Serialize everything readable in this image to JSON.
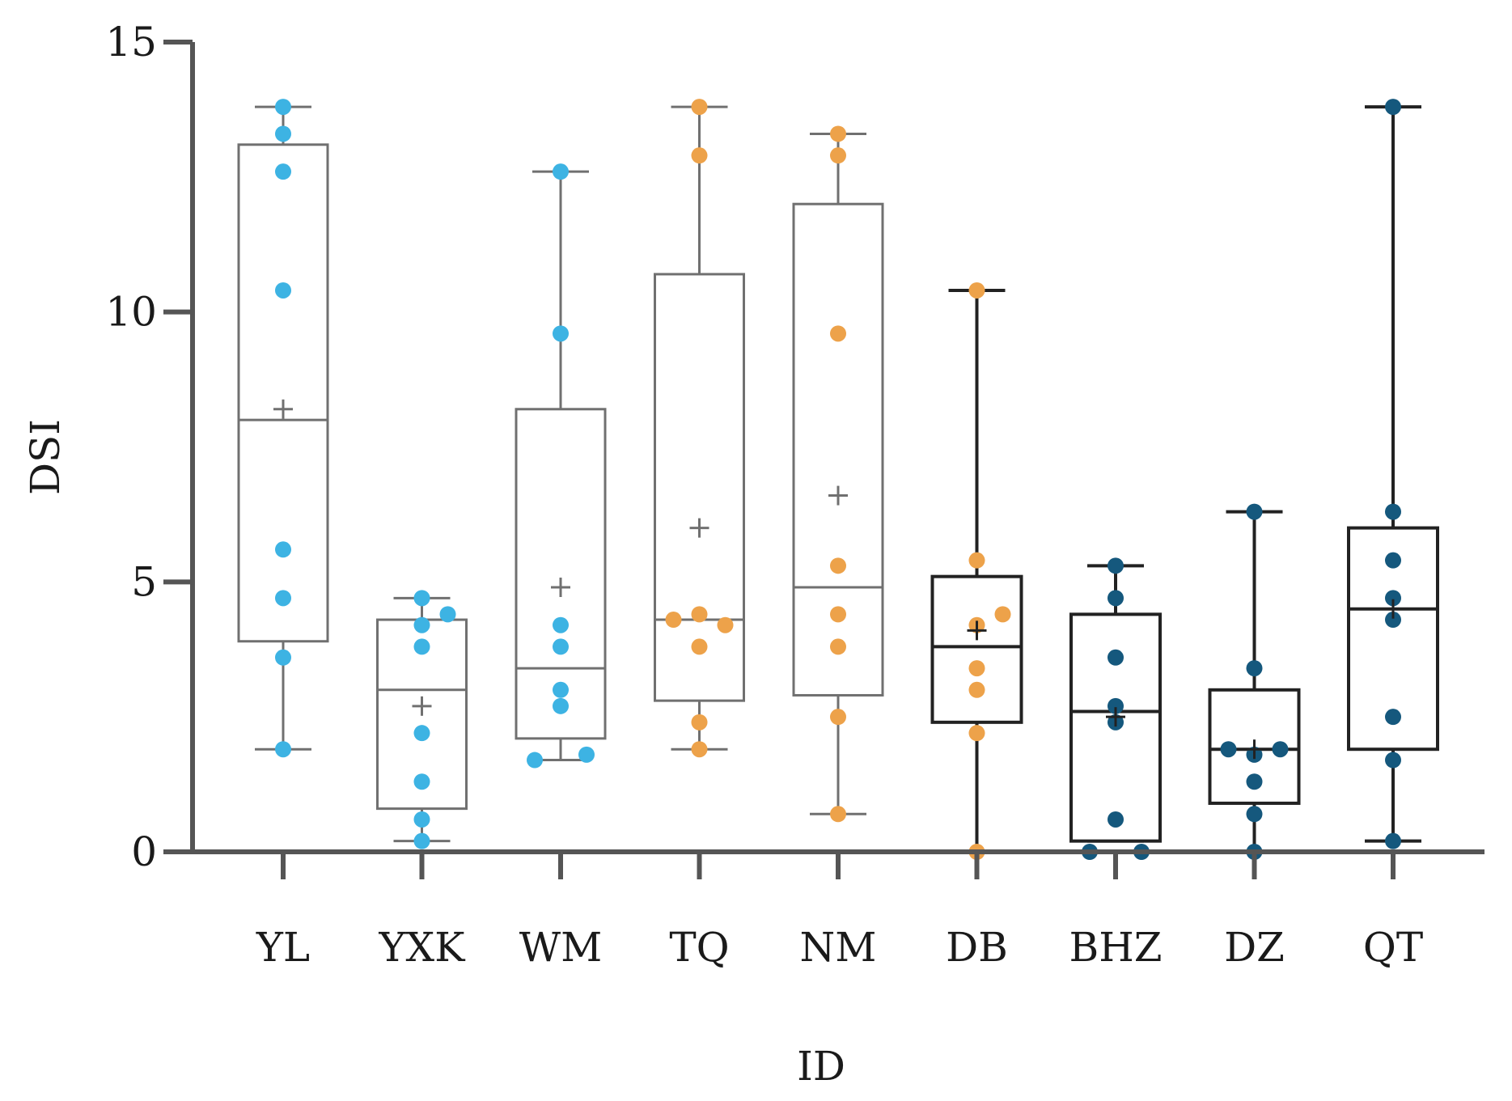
{
  "chart_data": {
    "type": "box",
    "title": "",
    "xlabel": "ID",
    "ylabel": "DSI",
    "ylim": [
      0,
      15
    ],
    "yticks": [
      0,
      5,
      10,
      15
    ],
    "grid": false,
    "colors": {
      "light_blue": "#3db3e3",
      "orange": "#eda24a",
      "dark_blue": "#15587d",
      "axis": "#555555",
      "light_box": "#707070",
      "dark_box": "#222222"
    },
    "categories": [
      {
        "name": "YL",
        "color": "light_blue",
        "box": "light",
        "whisker_low": 1.9,
        "q1": 3.9,
        "median": 8.0,
        "q3": 13.1,
        "whisker_high": 13.8,
        "mean": 8.2,
        "points": [
          [
            0,
            13.8
          ],
          [
            0,
            13.3
          ],
          [
            0,
            12.6
          ],
          [
            0,
            10.4
          ],
          [
            0,
            5.6
          ],
          [
            0,
            4.7
          ],
          [
            0,
            3.6
          ],
          [
            0,
            1.9
          ]
        ]
      },
      {
        "name": "YXK",
        "color": "light_blue",
        "box": "light",
        "whisker_low": 0.2,
        "q1": 0.8,
        "median": 3.0,
        "q3": 4.3,
        "whisker_high": 4.7,
        "mean": 2.7,
        "points": [
          [
            0,
            4.7
          ],
          [
            0,
            4.2
          ],
          [
            0.2,
            4.4
          ],
          [
            0,
            3.8
          ],
          [
            0,
            2.2
          ],
          [
            0,
            1.3
          ],
          [
            0,
            0.6
          ],
          [
            0,
            0.2
          ]
        ]
      },
      {
        "name": "WM",
        "color": "light_blue",
        "box": "light",
        "whisker_low": 1.7,
        "q1": 2.1,
        "median": 3.4,
        "q3": 8.2,
        "whisker_high": 12.6,
        "mean": 4.9,
        "points": [
          [
            0,
            12.6
          ],
          [
            0,
            9.6
          ],
          [
            0,
            4.2
          ],
          [
            0,
            3.8
          ],
          [
            0,
            3.0
          ],
          [
            0,
            2.7
          ],
          [
            -0.2,
            1.7
          ],
          [
            0.2,
            1.8
          ]
        ]
      },
      {
        "name": "TQ",
        "color": "orange",
        "box": "light",
        "whisker_low": 1.9,
        "q1": 2.8,
        "median": 4.3,
        "q3": 10.7,
        "whisker_high": 13.8,
        "mean": 6.0,
        "points": [
          [
            0,
            13.8
          ],
          [
            0,
            12.9
          ],
          [
            -0.2,
            4.3
          ],
          [
            0,
            4.4
          ],
          [
            0.2,
            4.2
          ],
          [
            0,
            3.8
          ],
          [
            0,
            2.4
          ],
          [
            0,
            1.9
          ]
        ]
      },
      {
        "name": "NM",
        "color": "orange",
        "box": "light",
        "whisker_low": 0.7,
        "q1": 2.9,
        "median": 4.9,
        "q3": 12.0,
        "whisker_high": 13.3,
        "mean": 6.6,
        "points": [
          [
            0,
            13.3
          ],
          [
            0,
            12.9
          ],
          [
            0,
            9.6
          ],
          [
            0,
            5.3
          ],
          [
            0,
            4.4
          ],
          [
            0,
            3.8
          ],
          [
            0,
            2.5
          ],
          [
            0,
            0.7
          ]
        ]
      },
      {
        "name": "DB",
        "color": "orange",
        "box": "dark",
        "whisker_low": 0.0,
        "q1": 2.4,
        "median": 3.8,
        "q3": 5.1,
        "whisker_high": 10.4,
        "mean": 4.1,
        "points": [
          [
            0,
            10.4
          ],
          [
            0,
            5.4
          ],
          [
            0.2,
            4.4
          ],
          [
            0,
            4.2
          ],
          [
            0,
            3.4
          ],
          [
            0,
            3.0
          ],
          [
            0,
            2.2
          ],
          [
            0,
            0.0
          ]
        ]
      },
      {
        "name": "BHZ",
        "color": "dark_blue",
        "box": "dark",
        "whisker_low": 0.2,
        "q1": 0.2,
        "median": 2.6,
        "q3": 4.4,
        "whisker_high": 5.3,
        "mean": 2.5,
        "points": [
          [
            0,
            5.3
          ],
          [
            0,
            4.7
          ],
          [
            0,
            3.6
          ],
          [
            0,
            2.7
          ],
          [
            0,
            2.4
          ],
          [
            0,
            0.6
          ],
          [
            -0.2,
            0.0
          ],
          [
            0.2,
            0.0
          ]
        ]
      },
      {
        "name": "DZ",
        "color": "dark_blue",
        "box": "dark",
        "whisker_low": 0.0,
        "q1": 0.9,
        "median": 1.9,
        "q3": 3.0,
        "whisker_high": 6.3,
        "mean": 1.9,
        "points": [
          [
            0,
            6.3
          ],
          [
            0,
            3.4
          ],
          [
            -0.2,
            1.9
          ],
          [
            0,
            1.8
          ],
          [
            0.2,
            1.9
          ],
          [
            0,
            1.3
          ],
          [
            0,
            0.7
          ],
          [
            0,
            0.0
          ]
        ]
      },
      {
        "name": "QT",
        "color": "dark_blue",
        "box": "dark",
        "whisker_low": 0.2,
        "q1": 1.9,
        "median": 4.5,
        "q3": 6.0,
        "whisker_high": 13.8,
        "mean": 4.5,
        "points": [
          [
            0,
            13.8
          ],
          [
            0,
            6.3
          ],
          [
            0,
            5.4
          ],
          [
            0,
            4.7
          ],
          [
            0,
            4.3
          ],
          [
            0,
            2.5
          ],
          [
            0,
            1.7
          ],
          [
            0,
            0.2
          ]
        ]
      }
    ]
  }
}
